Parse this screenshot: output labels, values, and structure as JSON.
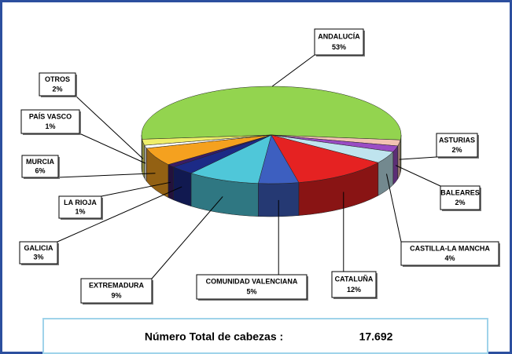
{
  "chart_data": {
    "type": "pie3d",
    "categories": [
      "ANDALUCÍA",
      "ASTURIAS",
      "BALEARES",
      "CASTILLA-LA MANCHA",
      "CATALUÑA",
      "COMUNIDAD VALENCIANA",
      "EXTREMADURA",
      "GALICIA",
      "LA RIOJA",
      "MURCIA",
      "PAÍS VASCO",
      "OTROS"
    ],
    "values": [
      53,
      2,
      2,
      4,
      12,
      5,
      9,
      3,
      1,
      6,
      1,
      2
    ],
    "value_labels": [
      "53%",
      "2%",
      "2%",
      "4%",
      "12%",
      "5%",
      "9%",
      "3%",
      "1%",
      "6%",
      "1%",
      "2%"
    ],
    "colors": [
      "#93d44f",
      "#f3c2b2",
      "#9a4cc4",
      "#bfe4ee",
      "#e52222",
      "#3d5fc0",
      "#4fc7d9",
      "#1c2a86",
      "#3a1c66",
      "#f5a11f",
      "#ffffff",
      "#eeee6a"
    ],
    "total": {
      "label": "Número Total de cabezas :",
      "value": "17.692"
    }
  }
}
